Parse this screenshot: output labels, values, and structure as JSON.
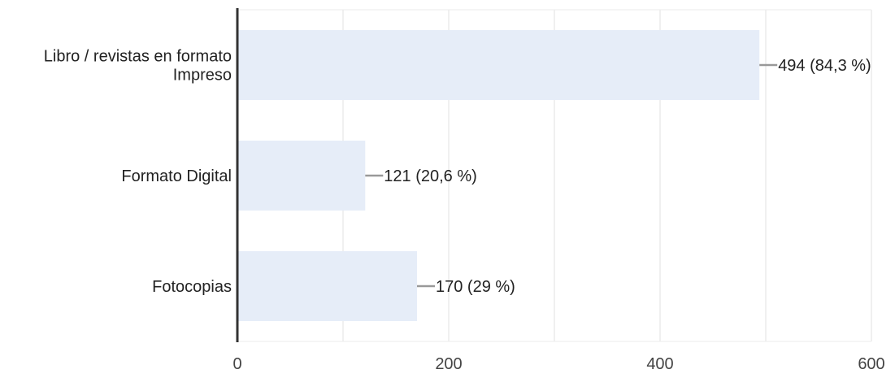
{
  "chart_data": {
    "type": "bar",
    "orientation": "horizontal",
    "categories": [
      [
        "Libro / revistas en formato",
        "Impreso"
      ],
      [
        "Formato Digital"
      ],
      [
        "Fotocopias"
      ]
    ],
    "values": [
      494,
      121,
      170
    ],
    "data_labels": [
      "494 (84,3 %)",
      "121 (20,6 %)",
      "170 (29 %)"
    ],
    "xlim": [
      0,
      600
    ],
    "x_ticks": [
      0,
      200,
      400,
      600
    ],
    "x_tick_labels": [
      "0",
      "200",
      "400",
      "600"
    ],
    "grid": true,
    "legend": "none",
    "colors": {
      "bar": "#e6edf8",
      "grid": "#ebebeb",
      "axis": "#333333",
      "leader": "#999999"
    }
  }
}
